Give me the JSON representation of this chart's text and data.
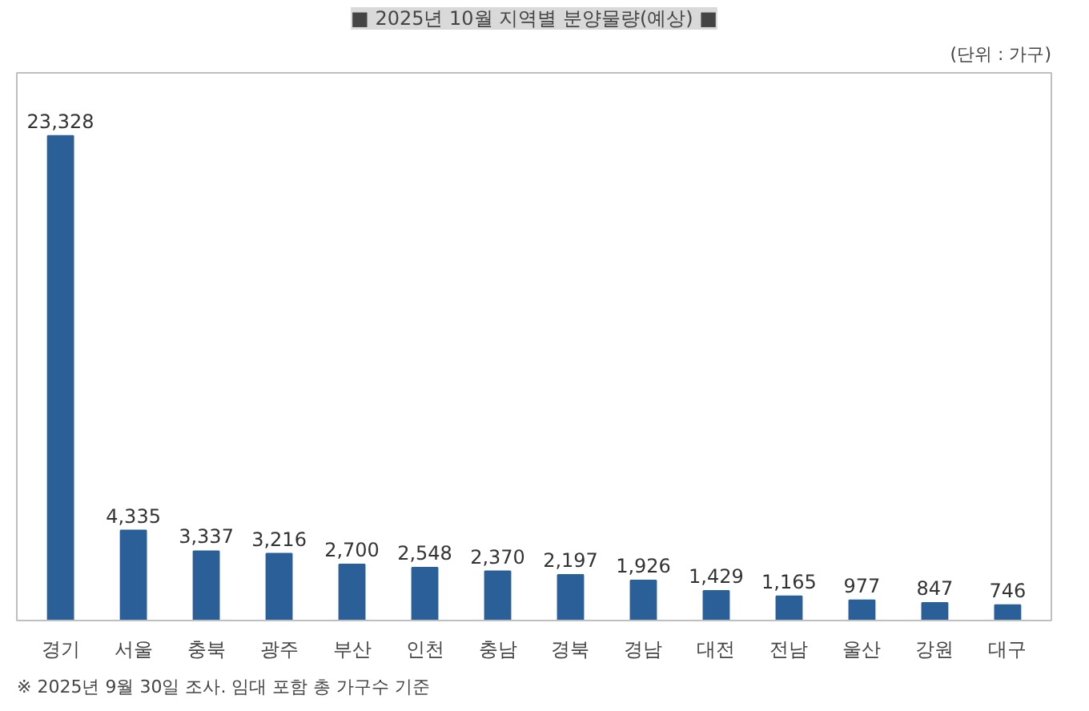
{
  "chart_data": {
    "type": "bar",
    "title": "■ 2025년 10월 지역별 분양물량(예상) ■",
    "categories": [
      "경기",
      "서울",
      "충북",
      "광주",
      "부산",
      "인천",
      "충남",
      "경북",
      "경남",
      "대전",
      "전남",
      "울산",
      "강원",
      "대구"
    ],
    "values": [
      23328,
      4335,
      3337,
      3216,
      2700,
      2548,
      2370,
      2197,
      1926,
      1429,
      1165,
      977,
      847,
      746
    ],
    "value_labels": [
      "23,328",
      "4,335",
      "3,337",
      "3,216",
      "2,700",
      "2,548",
      "2,370",
      "2,197",
      "1,926",
      "1,429",
      "1,165",
      "977",
      "847",
      "746"
    ],
    "color": "#2b5f98",
    "grid": false,
    "annotations": [
      "(단위 : 가구)",
      "※ 2025년 9월 30일 조사. 임대 포함 총 가구수 기준"
    ]
  }
}
